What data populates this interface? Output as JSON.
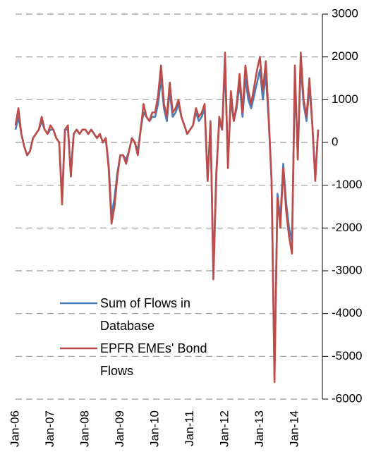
{
  "chart_data": {
    "type": "line",
    "categories": [
      "Jan-06",
      null,
      null,
      null,
      null,
      null,
      null,
      null,
      null,
      null,
      null,
      null,
      "Jan-07",
      null,
      null,
      null,
      null,
      null,
      null,
      null,
      null,
      null,
      null,
      null,
      "Jan-08",
      null,
      null,
      null,
      null,
      null,
      null,
      null,
      null,
      null,
      null,
      null,
      "Jan-09",
      null,
      null,
      null,
      null,
      null,
      null,
      null,
      null,
      null,
      null,
      null,
      "Jan-10",
      null,
      null,
      null,
      null,
      null,
      null,
      null,
      null,
      null,
      null,
      null,
      "Jan-11",
      null,
      null,
      null,
      null,
      null,
      null,
      null,
      null,
      null,
      null,
      null,
      "Jan-12",
      null,
      null,
      null,
      null,
      null,
      null,
      null,
      null,
      null,
      null,
      null,
      "Jan-13",
      null,
      null,
      null,
      null,
      null,
      null,
      null,
      null,
      null,
      null,
      null,
      "Jan-14",
      null,
      null,
      null,
      null,
      null,
      null,
      null,
      null
    ],
    "series": [
      {
        "name": "Sum of Flows in Database",
        "color": "#4a7ebb",
        "values": [
          300,
          600,
          200,
          -100,
          -300,
          -200,
          100,
          200,
          300,
          500,
          300,
          200,
          300,
          300,
          100,
          0,
          -1300,
          300,
          300,
          -700,
          200,
          300,
          200,
          300,
          300,
          200,
          300,
          200,
          100,
          200,
          0,
          100,
          -500,
          -1700,
          -1300,
          -700,
          -300,
          -300,
          -400,
          -200,
          100,
          0,
          -200,
          300,
          700,
          600,
          500,
          600,
          600,
          900,
          1500,
          800,
          500,
          1200,
          600,
          700,
          900,
          600,
          400,
          200,
          300,
          400,
          700,
          500,
          600,
          800,
          -900,
          400,
          -3000,
          -700,
          500,
          300,
          1800,
          -500,
          1000,
          500,
          800,
          1400,
          600,
          1500,
          1000,
          800,
          1100,
          1400,
          1700,
          1000,
          1600,
          500,
          -900,
          -5400,
          -1200,
          -1800,
          -500,
          -1400,
          -2000,
          -2300,
          1500,
          -300,
          1800,
          900,
          500,
          1300,
          400,
          -800,
          300
        ]
      },
      {
        "name": "EPFR EMEs' Bond Flows",
        "color": "#be4b48",
        "values": [
          400,
          800,
          200,
          -100,
          -300,
          -200,
          100,
          200,
          300,
          600,
          300,
          200,
          400,
          300,
          100,
          0,
          -1450,
          300,
          400,
          -800,
          200,
          300,
          200,
          300,
          300,
          200,
          300,
          200,
          100,
          200,
          0,
          100,
          -600,
          -1900,
          -1500,
          -800,
          -300,
          -300,
          -500,
          -200,
          100,
          0,
          -300,
          300,
          900,
          600,
          500,
          700,
          700,
          1100,
          1800,
          900,
          600,
          1400,
          700,
          800,
          1000,
          600,
          400,
          200,
          300,
          400,
          800,
          600,
          700,
          900,
          -900,
          500,
          -3200,
          -800,
          600,
          300,
          2100,
          -600,
          1200,
          500,
          900,
          1600,
          700,
          1800,
          1200,
          900,
          1300,
          1700,
          2000,
          1200,
          1900,
          600,
          -900,
          -5600,
          -1300,
          -2000,
          -600,
          -1600,
          -2200,
          -2600,
          1800,
          -400,
          2100,
          1000,
          600,
          1500,
          400,
          -900,
          300
        ]
      }
    ],
    "ylim": [
      -6000,
      3000
    ],
    "yticks": [
      -6000,
      -5000,
      -4000,
      -3000,
      -2000,
      -1000,
      0,
      1000,
      2000,
      3000
    ],
    "grid": true
  }
}
